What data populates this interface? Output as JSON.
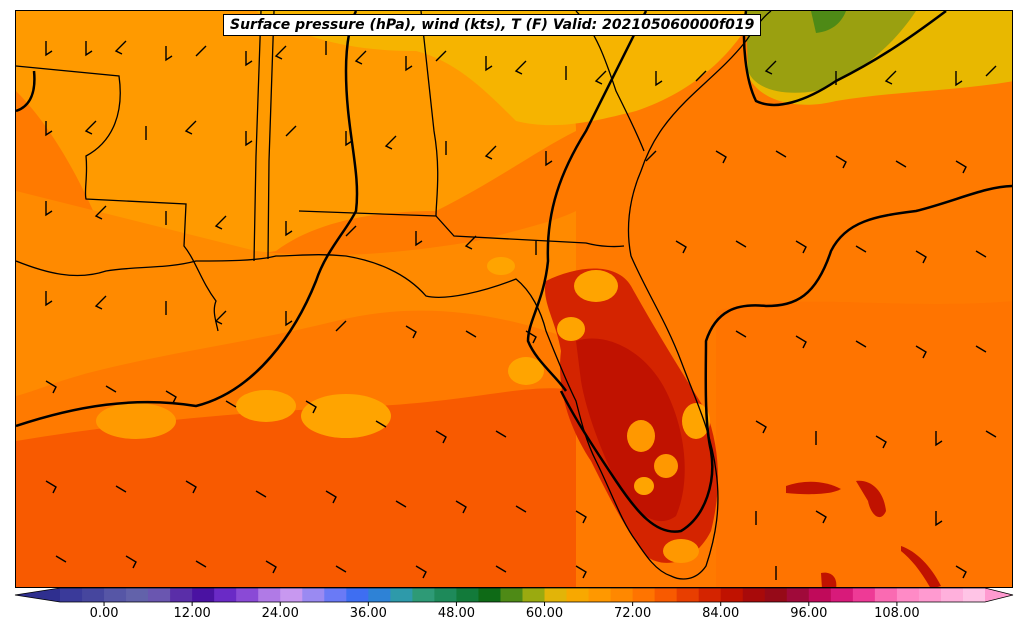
{
  "title": "Surface pressure (hPa), wind (kts), T (F) Valid: 202105060000f019",
  "colorbar": {
    "min": -6,
    "max": 120,
    "step": 3,
    "tick_labels": [
      "0.00",
      "12.00",
      "24.00",
      "36.00",
      "48.00",
      "60.00",
      "72.00",
      "84.00",
      "96.00",
      "108.00"
    ],
    "tick_values": [
      0,
      12,
      24,
      36,
      48,
      60,
      72,
      84,
      96,
      108
    ],
    "under_color": "#2f2f8f",
    "over_color": "#ff9ad0",
    "colors": [
      "#3a3a9a",
      "#46469e",
      "#5656a6",
      "#6262aa",
      "#6a56b0",
      "#5a2ea8",
      "#4a12a2",
      "#6a2ac6",
      "#8a4ad6",
      "#b07ae6",
      "#c898f0",
      "#9a8af2",
      "#6a7af6",
      "#3e6ef2",
      "#2e82d6",
      "#2e9aaa",
      "#2e9a76",
      "#1e8a5a",
      "#127a3a",
      "#0e6a16",
      "#4e8a16",
      "#9aaa10",
      "#e2b408",
      "#f8a800",
      "#ff9800",
      "#ff8800",
      "#ff7400",
      "#f85a00",
      "#e83e00",
      "#d42400",
      "#c01200",
      "#a80a0a",
      "#960a18",
      "#a00a3a",
      "#c00a5a",
      "#d81a7a",
      "#ee3a96",
      "#fa6ab2",
      "#ff8ac6",
      "#ff9ad0",
      "#ffb0dc",
      "#ffc4e6"
    ]
  },
  "map": {
    "variable_fill": "temperature",
    "contour": "surface pressure",
    "vectors": "wind barbs",
    "region": "Southeastern United States, Gulf of Mexico, Florida, Bahamas"
  }
}
